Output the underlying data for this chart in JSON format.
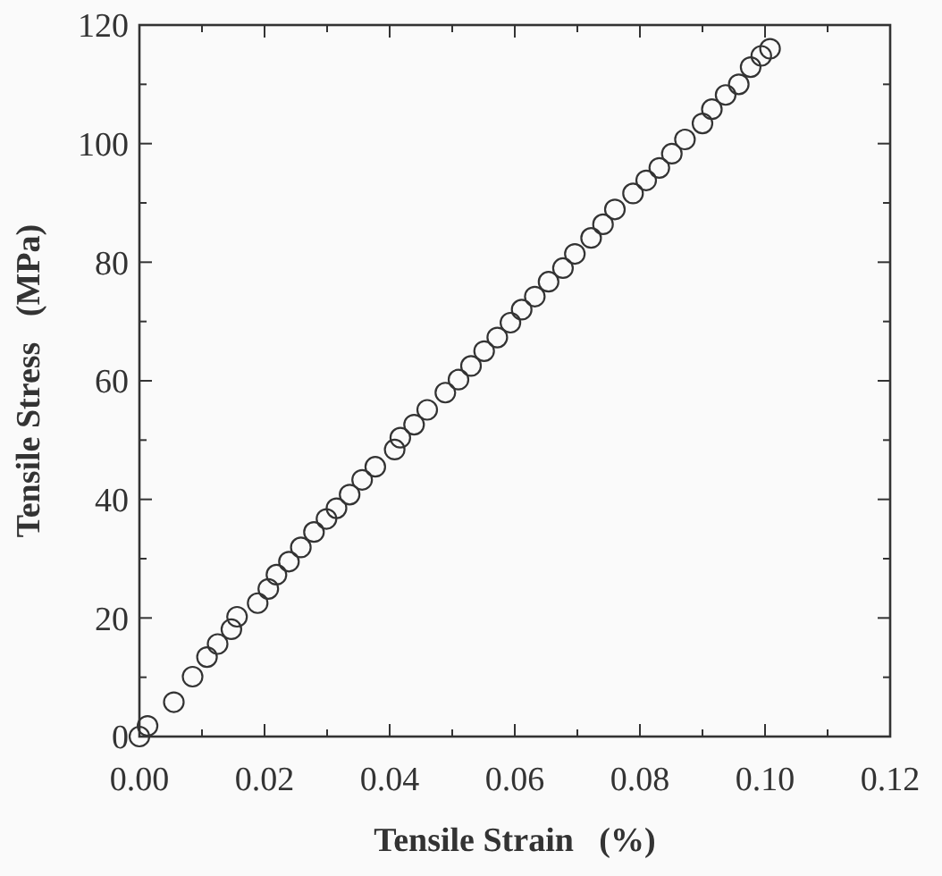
{
  "chart_data": {
    "type": "scatter",
    "xlabel": "Tensile Strain   (%)",
    "ylabel": "Tensile Stress   (MPa)",
    "marker": "circle",
    "grid": false,
    "xlim": [
      0,
      0.12
    ],
    "ylim": [
      0,
      120
    ],
    "xticks": [
      {
        "value": 0,
        "label": "0.00"
      },
      {
        "value": 0.01,
        "label": null
      },
      {
        "value": 0.02,
        "label": "0.02"
      },
      {
        "value": 0.03,
        "label": null
      },
      {
        "value": 0.04,
        "label": "0.04"
      },
      {
        "value": 0.05,
        "label": null
      },
      {
        "value": 0.06,
        "label": "0.06"
      },
      {
        "value": 0.07,
        "label": null
      },
      {
        "value": 0.08,
        "label": "0.08"
      },
      {
        "value": 0.09,
        "label": null
      },
      {
        "value": 0.1,
        "label": "0.10"
      },
      {
        "value": 0.11,
        "label": null
      },
      {
        "value": 0.12,
        "label": "0.12"
      }
    ],
    "yticks": [
      0,
      {
        "value": 10,
        "label": null
      },
      20,
      {
        "value": 30,
        "label": null
      },
      40,
      {
        "value": 50,
        "label": null
      },
      60,
      {
        "value": 70,
        "label": null
      },
      80,
      {
        "value": 90,
        "label": null
      },
      100,
      {
        "value": 110,
        "label": null
      },
      120
    ],
    "series": [
      {
        "color": "#333333",
        "x": [
          0,
          0.0013,
          0.0055,
          0.0085,
          0.0108,
          0.0125,
          0.0147,
          0.0156,
          0.0189,
          0.0206,
          0.0219,
          0.0239,
          0.0258,
          0.0279,
          0.0299,
          0.0315,
          0.0336,
          0.0356,
          0.0377,
          0.0408,
          0.0417,
          0.0439,
          0.046,
          0.0489,
          0.051,
          0.053,
          0.0551,
          0.0572,
          0.0593,
          0.0611,
          0.0632,
          0.0654,
          0.0677,
          0.0696,
          0.0722,
          0.0741,
          0.076,
          0.0789,
          0.081,
          0.0831,
          0.0851,
          0.0872,
          0.09,
          0.0915,
          0.0937,
          0.0958,
          0.0977,
          0.0994,
          0.1008
        ],
        "values": [
          0,
          1.8,
          5.8,
          10.1,
          13.4,
          15.6,
          18.1,
          20.2,
          22.5,
          24.9,
          27.3,
          29.5,
          31.9,
          34.5,
          36.7,
          38.5,
          40.8,
          43.3,
          45.5,
          48.4,
          50.4,
          52.6,
          55.1,
          58,
          60.2,
          62.5,
          65,
          67.3,
          69.8,
          72,
          74.2,
          76.7,
          79,
          81.4,
          84.1,
          86.4,
          88.9,
          91.6,
          93.8,
          95.9,
          98.3,
          100.7,
          103.4,
          105.8,
          108.2,
          110,
          112.9,
          114.8,
          116
        ]
      }
    ]
  }
}
